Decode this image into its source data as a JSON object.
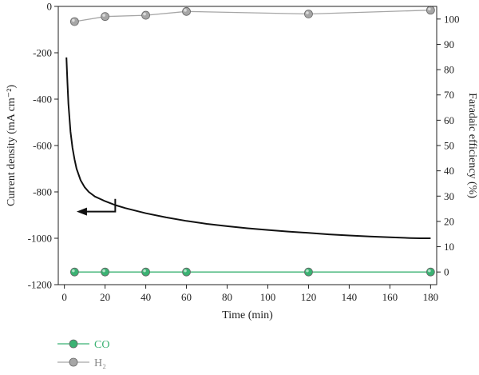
{
  "chart_data": {
    "type": "line",
    "xlabel": "Time (min)",
    "ylabel_left": "Current density (mA cm⁻²)",
    "ylabel_right": "Faradaic efficiency (%)",
    "xlim": [
      -3,
      183
    ],
    "ylim_left": [
      -1200,
      0
    ],
    "ylim_right": [
      -5,
      105
    ],
    "x_ticks": [
      "0",
      "20",
      "40",
      "60",
      "80",
      "100",
      "120",
      "140",
      "160",
      "180"
    ],
    "y_left_ticks": [
      "0",
      "-200",
      "-400",
      "-600",
      "-800",
      "-1000",
      "-1200"
    ],
    "y_right_ticks": [
      "0",
      "10",
      "20",
      "30",
      "40",
      "50",
      "60",
      "70",
      "80",
      "90",
      "100"
    ],
    "series": [
      {
        "kind": "current_density",
        "axis": "left",
        "color": "#111111",
        "x": [
          1,
          1.5,
          2,
          3,
          4,
          5,
          6,
          8,
          10,
          12,
          15,
          20,
          25,
          30,
          40,
          50,
          60,
          70,
          80,
          90,
          100,
          110,
          120,
          130,
          140,
          150,
          160,
          170,
          175,
          180
        ],
        "y": [
          -220,
          -330,
          -420,
          -540,
          -610,
          -660,
          -700,
          -750,
          -780,
          -800,
          -820,
          -840,
          -857,
          -870,
          -892,
          -910,
          -925,
          -938,
          -948,
          -957,
          -964,
          -971,
          -977,
          -983,
          -988,
          -992,
          -996,
          -999,
          -1000,
          -1000
        ]
      },
      {
        "name": "CO",
        "axis": "right",
        "color": "#3bb273",
        "x": [
          5,
          20,
          40,
          60,
          120,
          180
        ],
        "y": [
          0,
          0,
          0,
          0,
          0,
          0
        ]
      },
      {
        "name": "H₂",
        "axis": "right",
        "color": "#a6a6a6",
        "x": [
          5,
          20,
          40,
          60,
          120,
          180
        ],
        "y": [
          99,
          101,
          101.5,
          103,
          102,
          103.5
        ]
      }
    ],
    "arrow_direction": "left"
  },
  "legend": {
    "items": [
      {
        "label": "CO",
        "color": "#3bb273"
      },
      {
        "label": "H₂",
        "color": "#a6a6a6"
      }
    ]
  }
}
